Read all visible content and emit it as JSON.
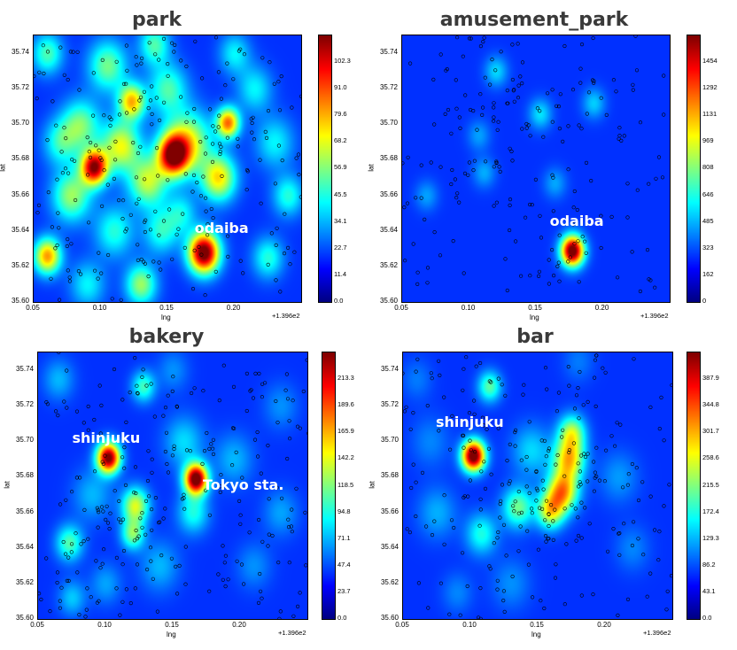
{
  "chart_data": [
    {
      "type": "heatmap",
      "title": "park",
      "xlabel": "lng",
      "ylabel": "lat",
      "x_offset_label": "+1.396e2",
      "xlim": [
        0.05,
        0.25
      ],
      "ylim": [
        35.6,
        35.75
      ],
      "xticks": [
        "0.05",
        "0.10",
        "0.15",
        "0.20"
      ],
      "yticks": [
        "35.60",
        "35.62",
        "35.64",
        "35.66",
        "35.68",
        "35.70",
        "35.72",
        "35.74"
      ],
      "colorbar_ticks": [
        "0.0",
        "11.4",
        "22.7",
        "34.1",
        "45.5",
        "56.9",
        "68.2",
        "79.6",
        "91.0",
        "102.3"
      ],
      "colorbar_max": 113.7,
      "annotations": [
        {
          "text": "odaiba",
          "x": 0.171,
          "y": 35.641
        }
      ],
      "hotspots": [
        {
          "x": 0.095,
          "y": 35.676,
          "value": 100,
          "spread": 0.007
        },
        {
          "x": 0.154,
          "y": 35.683,
          "value": 95,
          "spread": 0.008
        },
        {
          "x": 0.177,
          "y": 35.628,
          "value": 113,
          "spread": 0.008
        },
        {
          "x": 0.195,
          "y": 35.701,
          "value": 75,
          "spread": 0.006
        },
        {
          "x": 0.123,
          "y": 35.713,
          "value": 65,
          "spread": 0.007
        },
        {
          "x": 0.06,
          "y": 35.626,
          "value": 70,
          "spread": 0.007
        },
        {
          "x": 0.115,
          "y": 35.688,
          "value": 55,
          "spread": 0.01
        },
        {
          "x": 0.135,
          "y": 35.668,
          "value": 50,
          "spread": 0.01
        },
        {
          "x": 0.188,
          "y": 35.67,
          "value": 60,
          "spread": 0.009
        },
        {
          "x": 0.165,
          "y": 35.69,
          "value": 55,
          "spread": 0.012
        },
        {
          "x": 0.078,
          "y": 35.66,
          "value": 45,
          "spread": 0.01
        },
        {
          "x": 0.105,
          "y": 35.733,
          "value": 40,
          "spread": 0.01
        },
        {
          "x": 0.15,
          "y": 35.72,
          "value": 35,
          "spread": 0.01
        },
        {
          "x": 0.085,
          "y": 35.7,
          "value": 40,
          "spread": 0.01
        },
        {
          "x": 0.06,
          "y": 35.74,
          "value": 35,
          "spread": 0.008
        },
        {
          "x": 0.14,
          "y": 35.745,
          "value": 35,
          "spread": 0.008
        },
        {
          "x": 0.13,
          "y": 35.61,
          "value": 45,
          "spread": 0.008
        },
        {
          "x": 0.11,
          "y": 35.64,
          "value": 30,
          "spread": 0.01
        },
        {
          "x": 0.23,
          "y": 35.69,
          "value": 25,
          "spread": 0.01
        },
        {
          "x": 0.24,
          "y": 35.66,
          "value": 30,
          "spread": 0.008
        },
        {
          "x": 0.215,
          "y": 35.72,
          "value": 25,
          "spread": 0.009
        },
        {
          "x": 0.225,
          "y": 35.625,
          "value": 30,
          "spread": 0.008
        },
        {
          "x": 0.145,
          "y": 35.64,
          "value": 30,
          "spread": 0.009
        },
        {
          "x": 0.16,
          "y": 35.65,
          "value": 25,
          "spread": 0.008
        },
        {
          "x": 0.2,
          "y": 35.74,
          "value": 25,
          "spread": 0.008
        },
        {
          "x": 0.07,
          "y": 35.69,
          "value": 30,
          "spread": 0.009
        },
        {
          "x": 0.09,
          "y": 35.61,
          "value": 25,
          "spread": 0.009
        }
      ]
    },
    {
      "type": "heatmap",
      "title": "amusement_park",
      "xlabel": "lng",
      "ylabel": "lat",
      "x_offset_label": "+1.396e2",
      "xlim": [
        0.05,
        0.25
      ],
      "ylim": [
        35.6,
        35.75
      ],
      "xticks": [
        "0.05",
        "0.10",
        "0.15",
        "0.20"
      ],
      "yticks": [
        "35.60",
        "35.62",
        "35.64",
        "35.66",
        "35.68",
        "35.70",
        "35.72",
        "35.74"
      ],
      "colorbar_ticks": [
        "0",
        "162",
        "323",
        "485",
        "646",
        "808",
        "969",
        "1131",
        "1292",
        "1454"
      ],
      "colorbar_max": 1615,
      "annotations": [
        {
          "text": "odaiba",
          "x": 0.161,
          "y": 35.645
        }
      ],
      "hotspots": [
        {
          "x": 0.177,
          "y": 35.629,
          "value": 1615,
          "spread": 0.006
        },
        {
          "x": 0.12,
          "y": 35.73,
          "value": 300,
          "spread": 0.006
        },
        {
          "x": 0.153,
          "y": 35.706,
          "value": 320,
          "spread": 0.006
        },
        {
          "x": 0.193,
          "y": 35.712,
          "value": 280,
          "spread": 0.006
        },
        {
          "x": 0.107,
          "y": 35.694,
          "value": 200,
          "spread": 0.006
        },
        {
          "x": 0.111,
          "y": 35.673,
          "value": 220,
          "spread": 0.006
        },
        {
          "x": 0.068,
          "y": 35.66,
          "value": 200,
          "spread": 0.006
        },
        {
          "x": 0.164,
          "y": 35.667,
          "value": 210,
          "spread": 0.006
        }
      ]
    },
    {
      "type": "heatmap",
      "title": "bakery",
      "xlabel": "lng",
      "ylabel": "lat",
      "x_offset_label": "+1.396e2",
      "xlim": [
        0.05,
        0.25
      ],
      "ylim": [
        35.6,
        35.75
      ],
      "xticks": [
        "0.05",
        "0.10",
        "0.15",
        "0.20"
      ],
      "yticks": [
        "35.60",
        "35.62",
        "35.64",
        "35.66",
        "35.68",
        "35.70",
        "35.72",
        "35.74"
      ],
      "colorbar_ticks": [
        "0.0",
        "23.7",
        "47.4",
        "71.1",
        "94.8",
        "118.5",
        "142.2",
        "165.9",
        "189.6",
        "213.3"
      ],
      "colorbar_max": 237,
      "annotations": [
        {
          "text": "shinjuku",
          "x": 0.076,
          "y": 35.701
        },
        {
          "text": "Tokyo sta.",
          "x": 0.173,
          "y": 35.675
        }
      ],
      "hotspots": [
        {
          "x": 0.102,
          "y": 35.691,
          "value": 225,
          "spread": 0.006
        },
        {
          "x": 0.167,
          "y": 35.679,
          "value": 237,
          "spread": 0.006
        },
        {
          "x": 0.122,
          "y": 35.664,
          "value": 110,
          "spread": 0.007
        },
        {
          "x": 0.12,
          "y": 35.648,
          "value": 85,
          "spread": 0.006
        },
        {
          "x": 0.073,
          "y": 35.643,
          "value": 75,
          "spread": 0.007
        },
        {
          "x": 0.128,
          "y": 35.731,
          "value": 70,
          "spread": 0.006
        },
        {
          "x": 0.165,
          "y": 35.66,
          "value": 60,
          "spread": 0.008
        },
        {
          "x": 0.158,
          "y": 35.7,
          "value": 45,
          "spread": 0.01
        },
        {
          "x": 0.195,
          "y": 35.69,
          "value": 35,
          "spread": 0.01
        },
        {
          "x": 0.09,
          "y": 35.67,
          "value": 35,
          "spread": 0.01
        },
        {
          "x": 0.14,
          "y": 35.63,
          "value": 35,
          "spread": 0.01
        },
        {
          "x": 0.075,
          "y": 35.612,
          "value": 40,
          "spread": 0.007
        },
        {
          "x": 0.065,
          "y": 35.735,
          "value": 35,
          "spread": 0.008
        },
        {
          "x": 0.23,
          "y": 35.66,
          "value": 30,
          "spread": 0.009
        },
        {
          "x": 0.21,
          "y": 35.63,
          "value": 25,
          "spread": 0.009
        },
        {
          "x": 0.23,
          "y": 35.72,
          "value": 25,
          "spread": 0.009
        },
        {
          "x": 0.15,
          "y": 35.74,
          "value": 25,
          "spread": 0.008
        },
        {
          "x": 0.1,
          "y": 35.62,
          "value": 30,
          "spread": 0.008
        }
      ]
    },
    {
      "type": "heatmap",
      "title": "bar",
      "xlabel": "lng",
      "ylabel": "lat",
      "x_offset_label": "+1.396e2",
      "xlim": [
        0.05,
        0.25
      ],
      "ylim": [
        35.6,
        35.75
      ],
      "xticks": [
        "0.05",
        "0.10",
        "0.15",
        "0.20"
      ],
      "yticks": [
        "35.60",
        "35.62",
        "35.64",
        "35.66",
        "35.68",
        "35.70",
        "35.72",
        "35.74"
      ],
      "colorbar_ticks": [
        "0.0",
        "43.1",
        "86.2",
        "129.3",
        "172.4",
        "215.5",
        "258.6",
        "301.7",
        "344.8",
        "387.9"
      ],
      "colorbar_max": 431,
      "annotations": [
        {
          "text": "shinjuku",
          "x": 0.075,
          "y": 35.71
        }
      ],
      "hotspots": [
        {
          "x": 0.102,
          "y": 35.692,
          "value": 431,
          "spread": 0.006
        },
        {
          "x": 0.173,
          "y": 35.69,
          "value": 230,
          "spread": 0.008
        },
        {
          "x": 0.168,
          "y": 35.672,
          "value": 260,
          "spread": 0.008
        },
        {
          "x": 0.159,
          "y": 35.661,
          "value": 200,
          "spread": 0.007
        },
        {
          "x": 0.175,
          "y": 35.705,
          "value": 180,
          "spread": 0.007
        },
        {
          "x": 0.135,
          "y": 35.663,
          "value": 150,
          "spread": 0.008
        },
        {
          "x": 0.114,
          "y": 35.731,
          "value": 140,
          "spread": 0.006
        },
        {
          "x": 0.108,
          "y": 35.648,
          "value": 110,
          "spread": 0.008
        },
        {
          "x": 0.145,
          "y": 35.695,
          "value": 80,
          "spread": 0.01
        },
        {
          "x": 0.075,
          "y": 35.66,
          "value": 60,
          "spread": 0.01
        },
        {
          "x": 0.21,
          "y": 35.68,
          "value": 50,
          "spread": 0.01
        },
        {
          "x": 0.13,
          "y": 35.62,
          "value": 45,
          "spread": 0.01
        },
        {
          "x": 0.07,
          "y": 35.7,
          "value": 40,
          "spread": 0.01
        },
        {
          "x": 0.22,
          "y": 35.64,
          "value": 40,
          "spread": 0.009
        },
        {
          "x": 0.06,
          "y": 35.735,
          "value": 35,
          "spread": 0.008
        },
        {
          "x": 0.18,
          "y": 35.745,
          "value": 35,
          "spread": 0.008
        },
        {
          "x": 0.09,
          "y": 35.615,
          "value": 40,
          "spread": 0.008
        }
      ]
    }
  ]
}
